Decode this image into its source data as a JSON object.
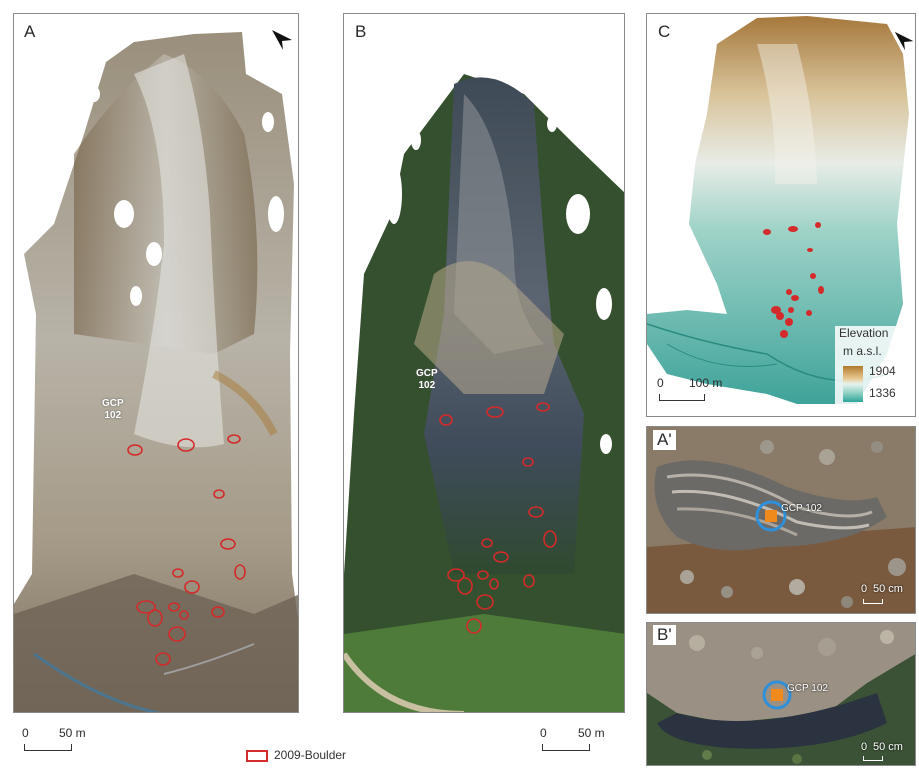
{
  "panels": {
    "a": {
      "label": "A",
      "gcp": "GCP\n102",
      "scale_zero": "0",
      "scale_len": "50 m"
    },
    "b": {
      "label": "B",
      "gcp": "GCP\n102",
      "scale_zero": "0",
      "scale_len": "50 m"
    },
    "c": {
      "label": "C",
      "scale_zero": "0",
      "scale_len": "100 m",
      "legend_title_1": "Elevation",
      "legend_title_2": "m a.s.l.",
      "legend_max": "1904",
      "legend_min": "1336"
    },
    "a_prime": {
      "label": "A'",
      "gcp": "GCP 102",
      "scale_zero": "0",
      "scale_len": "50 cm"
    },
    "b_prime": {
      "label": "B'",
      "gcp": "GCP 102",
      "scale_zero": "0",
      "scale_len": "50 cm"
    }
  },
  "legend": {
    "boulder_label": "2009-Boulder"
  },
  "colors": {
    "boulder_outline": "#d42a2a",
    "gcp_circle": "#2f8fd8",
    "gcp_marker": "#f08a1c",
    "elevation_high": "#b07a2e",
    "elevation_low": "#2fa59a"
  }
}
